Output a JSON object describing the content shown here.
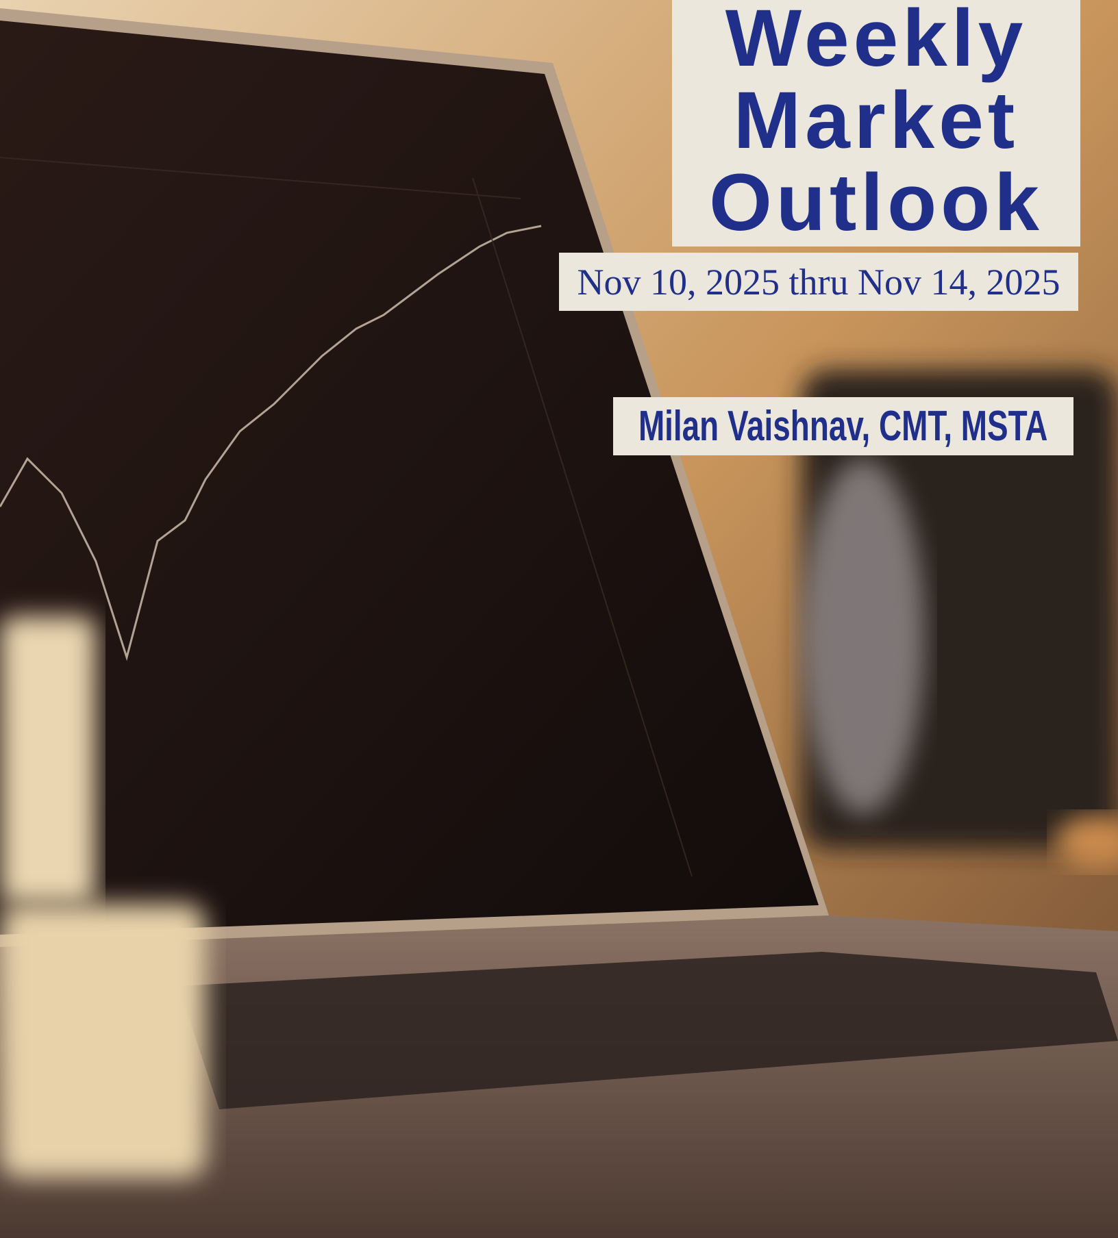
{
  "cover": {
    "title": "Weekly Market Outlook",
    "date_range": "Nov 10, 2025 thru Nov 14, 2025",
    "author": "Milan Vaishnav, CMT, MSTA"
  }
}
